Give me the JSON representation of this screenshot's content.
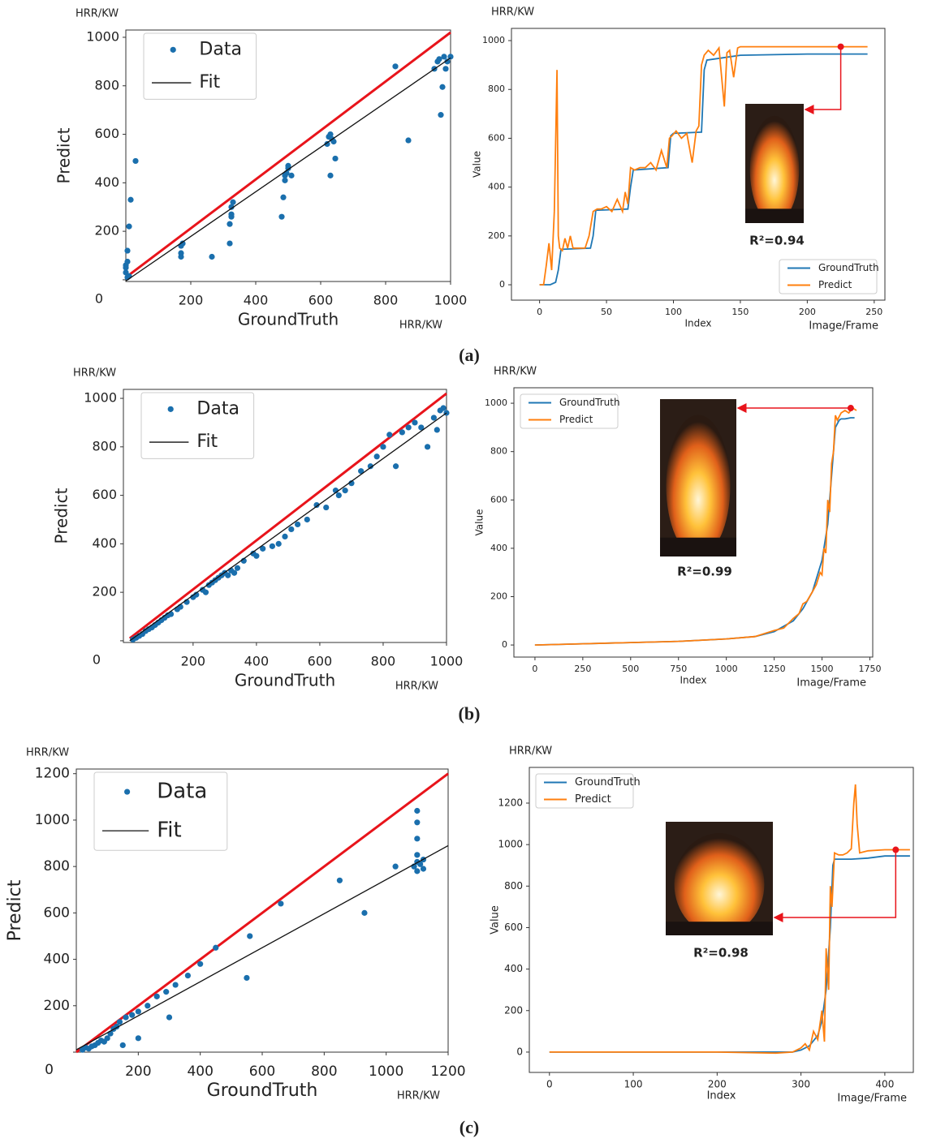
{
  "panel_labels": [
    "(a)",
    "(b)",
    "(c)"
  ],
  "chart_data": [
    {
      "type": "scatter",
      "xlabel": "GroundTruth",
      "ylabel": "Predict",
      "y_unit": "HRR/KW",
      "x_unit": "HRR/KW",
      "xlim": [
        0,
        1000
      ],
      "ylim": [
        -7,
        1030
      ],
      "xticks": [
        200,
        400,
        600,
        800,
        1000
      ],
      "yticks": [
        0,
        200,
        400,
        600,
        800,
        1000
      ],
      "legend": "upper left",
      "reference_line": {
        "color": "#e8141b",
        "x": [
          0,
          1000
        ],
        "values": [
          10,
          1020
        ]
      },
      "series": [
        {
          "name": "Data",
          "color": "#1a6fad",
          "x": [
            0,
            0,
            0,
            5,
            5,
            10,
            15,
            30,
            5,
            10,
            170,
            170,
            170,
            175,
            265,
            320,
            320,
            325,
            325,
            325,
            330,
            480,
            485,
            490,
            490,
            495,
            500,
            500,
            510,
            620,
            625,
            630,
            635,
            640,
            630,
            645,
            830,
            870,
            950,
            960,
            965,
            970,
            975,
            980,
            985,
            990,
            1000
          ],
          "values": [
            30,
            50,
            60,
            75,
            120,
            220,
            330,
            490,
            10,
            15,
            95,
            110,
            140,
            150,
            95,
            150,
            230,
            260,
            270,
            300,
            320,
            260,
            340,
            410,
            430,
            440,
            460,
            470,
            430,
            560,
            590,
            600,
            580,
            570,
            430,
            500,
            880,
            575,
            870,
            900,
            910,
            680,
            795,
            920,
            870,
            900,
            920
          ]
        },
        {
          "name": "Fit",
          "color": "#111111",
          "x": [
            0,
            1000
          ],
          "values": [
            -5,
            915
          ]
        }
      ]
    },
    {
      "type": "line",
      "xlabel": "Index",
      "ylabel": "Value",
      "y_unit": "HRR/KW",
      "x_unit": "Image/Frame",
      "xlim": [
        -21,
        258
      ],
      "ylim": [
        -63,
        1050
      ],
      "xticks": [
        0,
        50,
        100,
        150,
        200,
        250
      ],
      "yticks": [
        0,
        200,
        400,
        600,
        800,
        1000
      ],
      "legend": "lower right",
      "annotation": "R²=0.94",
      "highlight": {
        "x": 225,
        "y": 975,
        "color": "#e8141b"
      },
      "series": [
        {
          "name": "GroundTruth",
          "color": "#1f77b4",
          "x": [
            0,
            8,
            12,
            14,
            16,
            38,
            40,
            42,
            66,
            68,
            70,
            96,
            98,
            100,
            121,
            123,
            125,
            150,
            200,
            245
          ],
          "values": [
            0,
            0,
            10,
            60,
            145,
            150,
            200,
            305,
            310,
            400,
            470,
            480,
            610,
            620,
            625,
            880,
            920,
            940,
            945,
            945
          ]
        },
        {
          "name": "Predict",
          "color": "#ff7f0e",
          "x": [
            0,
            3,
            5,
            7,
            9,
            11,
            13,
            14,
            15,
            17,
            19,
            21,
            23,
            25,
            28,
            31,
            34,
            37,
            40,
            43,
            46,
            50,
            54,
            58,
            62,
            64,
            66,
            68,
            71,
            75,
            79,
            83,
            87,
            91,
            95,
            97,
            99,
            102,
            106,
            110,
            114,
            117,
            119,
            121,
            123,
            126,
            130,
            134,
            138,
            140,
            142,
            145,
            148,
            150,
            160,
            170,
            180,
            200,
            220,
            245
          ],
          "values": [
            0,
            0,
            80,
            170,
            60,
            300,
            880,
            200,
            150,
            140,
            190,
            150,
            200,
            150,
            150,
            150,
            150,
            200,
            300,
            310,
            310,
            320,
            300,
            350,
            300,
            380,
            330,
            480,
            470,
            480,
            480,
            500,
            470,
            550,
            480,
            600,
            610,
            630,
            600,
            620,
            500,
            630,
            650,
            900,
            940,
            960,
            940,
            970,
            730,
            950,
            960,
            850,
            970,
            975,
            975,
            975,
            975,
            975,
            975,
            975
          ]
        }
      ]
    },
    {
      "type": "scatter",
      "xlabel": "GroundTruth",
      "ylabel": "Predict",
      "y_unit": "HRR/KW",
      "x_unit": "HRR/KW",
      "xlim": [
        -20,
        1000
      ],
      "ylim": [
        -7,
        1037
      ],
      "xticks": [
        200,
        400,
        600,
        800,
        1000
      ],
      "yticks": [
        0,
        200,
        400,
        600,
        800,
        1000
      ],
      "legend": "upper left",
      "reference_line": {
        "color": "#e8141b",
        "x": [
          0,
          1000
        ],
        "values": [
          10,
          1020
        ]
      },
      "series": [
        {
          "name": "Data",
          "color": "#1a6fad",
          "x": [
            10,
            20,
            30,
            40,
            50,
            60,
            70,
            80,
            90,
            100,
            110,
            120,
            130,
            150,
            160,
            180,
            200,
            210,
            230,
            240,
            250,
            260,
            270,
            280,
            290,
            300,
            310,
            320,
            330,
            340,
            360,
            390,
            400,
            420,
            450,
            470,
            490,
            510,
            530,
            560,
            590,
            620,
            650,
            660,
            680,
            700,
            730,
            760,
            780,
            800,
            820,
            840,
            860,
            880,
            900,
            920,
            940,
            960,
            970,
            980,
            990,
            1000
          ],
          "values": [
            5,
            12,
            20,
            28,
            40,
            48,
            55,
            65,
            75,
            85,
            95,
            105,
            110,
            130,
            140,
            160,
            180,
            190,
            210,
            200,
            230,
            240,
            250,
            260,
            270,
            280,
            270,
            290,
            280,
            300,
            330,
            360,
            350,
            380,
            390,
            400,
            430,
            460,
            480,
            500,
            560,
            550,
            620,
            600,
            620,
            650,
            700,
            720,
            760,
            800,
            850,
            720,
            860,
            880,
            900,
            880,
            800,
            920,
            870,
            950,
            960,
            940
          ]
        },
        {
          "name": "Fit",
          "color": "#111111",
          "x": [
            0,
            1000
          ],
          "values": [
            0,
            940
          ]
        }
      ]
    },
    {
      "type": "line",
      "xlabel": "Index",
      "ylabel": "Value",
      "y_unit": "HRR/KW",
      "x_unit": "Image/Frame",
      "xlim": [
        -110,
        1765
      ],
      "ylim": [
        -50,
        1064
      ],
      "xticks": [
        0,
        250,
        500,
        750,
        1000,
        1250,
        1500,
        1750
      ],
      "yticks": [
        0,
        200,
        400,
        600,
        800,
        1000
      ],
      "legend": "upper left",
      "annotation": "R²=0.99",
      "highlight": {
        "x": 1650,
        "y": 980,
        "color": "#e8141b"
      },
      "series": [
        {
          "name": "GroundTruth",
          "color": "#1f77b4",
          "x": [
            0,
            250,
            500,
            750,
            1000,
            1150,
            1250,
            1350,
            1400,
            1450,
            1500,
            1530,
            1550,
            1570,
            1590,
            1600,
            1620,
            1650,
            1670
          ],
          "values": [
            0,
            5,
            10,
            15,
            25,
            35,
            55,
            100,
            150,
            220,
            350,
            500,
            700,
            900,
            930,
            935,
            935,
            940,
            940
          ]
        },
        {
          "name": "Predict",
          "color": "#ff7f0e",
          "x": [
            0,
            250,
            500,
            750,
            1000,
            1150,
            1250,
            1300,
            1350,
            1380,
            1400,
            1420,
            1450,
            1470,
            1490,
            1500,
            1510,
            1520,
            1530,
            1540,
            1550,
            1560,
            1570,
            1580,
            1600,
            1620,
            1640,
            1660,
            1680
          ],
          "values": [
            0,
            5,
            10,
            15,
            25,
            35,
            60,
            70,
            110,
            130,
            170,
            180,
            220,
            250,
            300,
            290,
            400,
            380,
            600,
            550,
            750,
            800,
            950,
            930,
            960,
            970,
            960,
            980,
            970
          ]
        }
      ]
    },
    {
      "type": "scatter",
      "xlabel": "GroundTruth",
      "ylabel": "Predict",
      "y_unit": "HRR/KW",
      "x_unit": "HRR/KW",
      "xlim": [
        0,
        1200
      ],
      "ylim": [
        0,
        1220
      ],
      "xticks": [
        200,
        400,
        600,
        800,
        1000,
        1200
      ],
      "yticks": [
        0,
        200,
        400,
        600,
        800,
        1000,
        1200
      ],
      "legend": "upper left",
      "reference_line": {
        "color": "#e8141b",
        "x": [
          0,
          1200
        ],
        "values": [
          0,
          1200
        ]
      },
      "series": [
        {
          "name": "Data",
          "color": "#1a6fad",
          "x": [
            20,
            30,
            40,
            50,
            60,
            70,
            80,
            90,
            100,
            110,
            120,
            130,
            140,
            150,
            160,
            180,
            200,
            200,
            230,
            260,
            290,
            300,
            320,
            360,
            400,
            450,
            550,
            560,
            660,
            850,
            930,
            1030,
            1090,
            1100,
            1100,
            1100,
            1100,
            1100,
            1100,
            1110,
            1120,
            1120
          ],
          "values": [
            10,
            20,
            15,
            25,
            30,
            40,
            50,
            45,
            60,
            80,
            100,
            110,
            130,
            30,
            150,
            160,
            60,
            175,
            200,
            240,
            260,
            150,
            290,
            330,
            380,
            450,
            320,
            500,
            640,
            740,
            600,
            800,
            800,
            780,
            820,
            850,
            920,
            990,
            1040,
            810,
            830,
            790
          ]
        },
        {
          "name": "Fit",
          "color": "#111111",
          "x": [
            0,
            1200
          ],
          "values": [
            10,
            890
          ]
        }
      ]
    },
    {
      "type": "line",
      "xlabel": "Index",
      "ylabel": "Value",
      "y_unit": "HRR/KW",
      "x_unit": "Image/Frame",
      "xlim": [
        -24,
        434
      ],
      "ylim": [
        -98,
        1372
      ],
      "xticks": [
        0,
        100,
        200,
        300,
        400
      ],
      "yticks": [
        0,
        200,
        400,
        600,
        800,
        1000,
        1200
      ],
      "legend": "upper left",
      "annotation": "R²=0.98",
      "highlight": {
        "x": 413,
        "y": 975,
        "color": "#e8141b"
      },
      "series": [
        {
          "name": "GroundTruth",
          "color": "#1f77b4",
          "x": [
            0,
            100,
            200,
            290,
            300,
            310,
            320,
            325,
            330,
            335,
            338,
            340,
            360,
            380,
            400,
            415,
            430
          ],
          "values": [
            0,
            0,
            0,
            0,
            10,
            30,
            80,
            150,
            300,
            600,
            900,
            930,
            930,
            935,
            945,
            945,
            945
          ]
        },
        {
          "name": "Predict",
          "color": "#ff7f0e",
          "x": [
            0,
            100,
            200,
            270,
            290,
            300,
            305,
            310,
            315,
            320,
            325,
            328,
            330,
            333,
            335,
            337,
            340,
            345,
            350,
            355,
            360,
            363,
            365,
            367,
            370,
            380,
            400,
            415,
            430
          ],
          "values": [
            0,
            0,
            0,
            -5,
            0,
            20,
            40,
            10,
            100,
            60,
            200,
            50,
            500,
            300,
            800,
            700,
            960,
            950,
            950,
            960,
            980,
            1200,
            1290,
            1100,
            960,
            970,
            975,
            975,
            975
          ]
        }
      ]
    }
  ]
}
